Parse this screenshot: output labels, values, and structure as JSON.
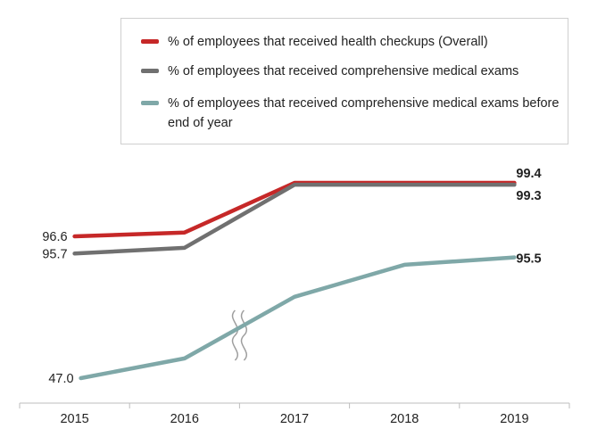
{
  "chart_data": {
    "type": "line",
    "categories": [
      "2015",
      "2016",
      "2017",
      "2018",
      "2019"
    ],
    "title": "",
    "xlabel": "",
    "ylabel": "",
    "axis_break": true,
    "grid": false,
    "legend_position": "top-right",
    "series": [
      {
        "name": "% of employees that received health checkups (Overall)",
        "color": "#c62828",
        "values": [
          96.6,
          96.8,
          99.4,
          99.4,
          99.4
        ],
        "labels": [
          {
            "index": 0,
            "text": "96.6",
            "side": "left"
          },
          {
            "index": 4,
            "text": "99.4",
            "side": "right-above"
          }
        ]
      },
      {
        "name": "% of employees that received comprehensive medical exams",
        "color": "#707070",
        "values": [
          95.7,
          96.0,
          99.3,
          99.3,
          99.3
        ],
        "labels": [
          {
            "index": 0,
            "text": "95.7",
            "side": "left"
          },
          {
            "index": 4,
            "text": "99.3",
            "side": "right-below"
          }
        ]
      },
      {
        "name": "% of employees that received comprehensive medical exams before end of year",
        "color": "#7fa8a8",
        "values": [
          47.0,
          55.0,
          80.0,
          93.0,
          95.5
        ],
        "labels": [
          {
            "index": 0,
            "text": "47.0",
            "side": "left"
          },
          {
            "index": 4,
            "text": "95.5",
            "side": "right"
          }
        ]
      }
    ]
  }
}
